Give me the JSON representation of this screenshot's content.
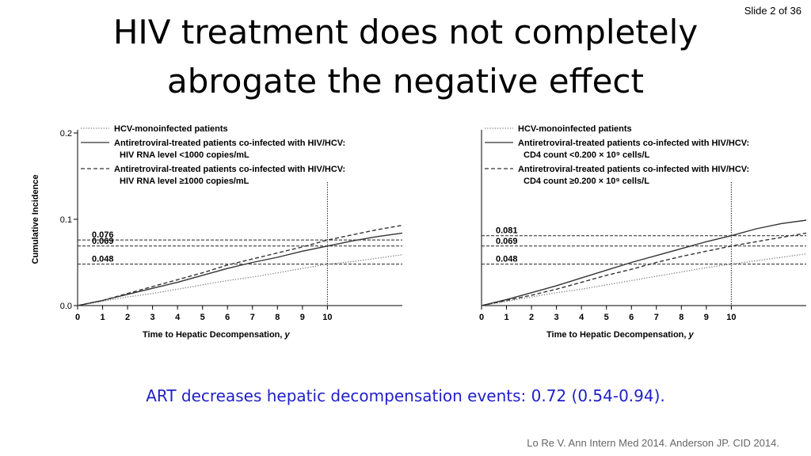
{
  "slide": {
    "number_label": "Slide 2 of 36"
  },
  "title": {
    "line1": "HIV treatment does not completely",
    "line2": "abrogate the negative effect"
  },
  "caption": "ART decreases hepatic decompensation events: 0.72 (0.54-0.94).",
  "citation": "Lo Re V. Ann Intern Med 2014. Anderson JP. CID 2014.",
  "chart_data": [
    {
      "type": "line",
      "ylabel": "Cumulative Incidence",
      "xlabel_main": "Time to Hepatic Decompensation,",
      "xlabel_unit": "y",
      "xlim": [
        0,
        13
      ],
      "ylim": [
        0,
        0.2
      ],
      "xticks": [
        0,
        1,
        2,
        3,
        4,
        5,
        6,
        7,
        8,
        9,
        10
      ],
      "yticks": [
        0.0,
        0.1,
        0.2
      ],
      "ytick_labels": [
        "0.0",
        "0.1",
        "0.2"
      ],
      "vline_x": 10,
      "reference_lines": [
        {
          "y": 0.076,
          "label": "0.076"
        },
        {
          "y": 0.069,
          "label": "0.069"
        },
        {
          "y": 0.048,
          "label": "0.048"
        }
      ],
      "legend": [
        {
          "lines": [
            "HCV-monoinfected patients"
          ],
          "style": "dotted"
        },
        {
          "lines": [
            "Antiretroviral-treated patients co-infected with HIV/HCV:",
            "HIV RNA level <1000 copies/mL"
          ],
          "style": "solid"
        },
        {
          "lines": [
            "Antiretroviral-treated patients co-infected with HIV/HCV:",
            "HIV RNA level ≥1000 copies/mL"
          ],
          "style": "dashed"
        }
      ],
      "series": [
        {
          "style": "dotted",
          "x": [
            0,
            1,
            2,
            3,
            4,
            5,
            6,
            7,
            8,
            9,
            10,
            11,
            12,
            13
          ],
          "y": [
            0,
            0.005,
            0.01,
            0.014,
            0.019,
            0.024,
            0.029,
            0.033,
            0.038,
            0.043,
            0.048,
            0.051,
            0.055,
            0.059
          ]
        },
        {
          "style": "solid",
          "x": [
            0,
            1,
            2,
            3,
            4,
            5,
            6,
            7,
            8,
            9,
            10,
            11,
            12,
            13
          ],
          "y": [
            0,
            0.006,
            0.013,
            0.02,
            0.027,
            0.035,
            0.043,
            0.05,
            0.056,
            0.063,
            0.069,
            0.075,
            0.08,
            0.084
          ]
        },
        {
          "style": "dashed",
          "x": [
            0,
            1,
            2,
            3,
            4,
            5,
            6,
            7,
            8,
            9,
            10,
            11,
            12,
            13
          ],
          "y": [
            0,
            0.006,
            0.014,
            0.022,
            0.03,
            0.038,
            0.047,
            0.054,
            0.061,
            0.068,
            0.076,
            0.082,
            0.088,
            0.093
          ]
        }
      ]
    },
    {
      "type": "line",
      "ylabel": "",
      "xlabel_main": "Time to Hepatic Decompensation,",
      "xlabel_unit": "y",
      "xlim": [
        0,
        13
      ],
      "ylim": [
        0,
        0.2
      ],
      "xticks": [
        0,
        1,
        2,
        3,
        4,
        5,
        6,
        7,
        8,
        9,
        10
      ],
      "yticks": [],
      "ytick_labels": [],
      "vline_x": 10,
      "reference_lines": [
        {
          "y": 0.081,
          "label": "0.081"
        },
        {
          "y": 0.069,
          "label": "0.069"
        },
        {
          "y": 0.048,
          "label": "0.048"
        }
      ],
      "legend": [
        {
          "lines": [
            "HCV-monoinfected patients"
          ],
          "style": "dotted"
        },
        {
          "lines": [
            "Antiretroviral-treated patients co-infected with HIV/HCV:",
            "CD4 count <0.200 × 10⁹ cells/L"
          ],
          "style": "solid"
        },
        {
          "lines": [
            "Antiretroviral-treated patients co-infected with HIV/HCV:",
            "CD4 count ≥0.200 × 10⁹ cells/L"
          ],
          "style": "dashed"
        }
      ],
      "series": [
        {
          "style": "dotted",
          "x": [
            0,
            1,
            2,
            3,
            4,
            5,
            6,
            7,
            8,
            9,
            10,
            11,
            12,
            13
          ],
          "y": [
            0,
            0.005,
            0.01,
            0.015,
            0.019,
            0.024,
            0.029,
            0.034,
            0.039,
            0.044,
            0.048,
            0.052,
            0.056,
            0.06
          ]
        },
        {
          "style": "solid",
          "x": [
            0,
            1,
            2,
            3,
            4,
            5,
            6,
            7,
            8,
            9,
            10,
            11,
            12,
            13
          ],
          "y": [
            0,
            0.007,
            0.015,
            0.023,
            0.032,
            0.041,
            0.05,
            0.058,
            0.066,
            0.074,
            0.081,
            0.089,
            0.095,
            0.099
          ]
        },
        {
          "style": "dashed",
          "x": [
            0,
            1,
            2,
            3,
            4,
            5,
            6,
            7,
            8,
            9,
            10,
            11,
            12,
            13
          ],
          "y": [
            0,
            0.006,
            0.012,
            0.019,
            0.027,
            0.035,
            0.042,
            0.05,
            0.057,
            0.063,
            0.069,
            0.074,
            0.079,
            0.084
          ]
        }
      ]
    }
  ]
}
